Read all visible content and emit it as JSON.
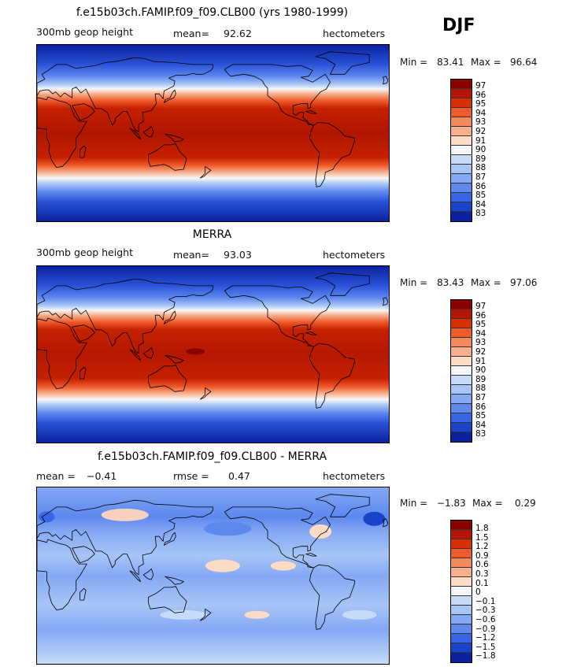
{
  "season": "DJF",
  "panels": [
    {
      "title": "f.e15b03ch.FAMIP.f09_f09.CLB00 (yrs 1980-1999)",
      "left_label": "300mb geop height",
      "mean_label": "mean=",
      "mean_value": "92.62",
      "units": "hectometers",
      "min_label": "Min =",
      "min_value": "83.41",
      "max_label": "Max =",
      "max_value": "96.64",
      "legend_levels": [
        "97",
        "96",
        "95",
        "94",
        "93",
        "92",
        "91",
        "90",
        "89",
        "88",
        "87",
        "86",
        "85",
        "84",
        "83"
      ],
      "legend_colors": [
        "#8b0000",
        "#b31500",
        "#d83000",
        "#ee5a2a",
        "#f4895e",
        "#f8b18f",
        "#fcdcc4",
        "#f6f6f6",
        "#c6dbf7",
        "#a7c5f6",
        "#84a8f5",
        "#5d88ee",
        "#3966e6",
        "#1a43cc",
        "#0a21a0"
      ],
      "color_stops": [
        {
          "lat": 90,
          "color": "#0a21a0"
        },
        {
          "lat": 70,
          "color": "#2a52d8"
        },
        {
          "lat": 58,
          "color": "#5d88ee"
        },
        {
          "lat": 50,
          "color": "#a7c5f6"
        },
        {
          "lat": 45,
          "color": "#f6f6f6"
        },
        {
          "lat": 40,
          "color": "#f8b18f"
        },
        {
          "lat": 33,
          "color": "#ee5a2a"
        },
        {
          "lat": 25,
          "color": "#c52100"
        },
        {
          "lat": 0,
          "color": "#b01500"
        },
        {
          "lat": -25,
          "color": "#c52100"
        },
        {
          "lat": -33,
          "color": "#ee5a2a"
        },
        {
          "lat": -40,
          "color": "#f8b18f"
        },
        {
          "lat": -46,
          "color": "#f6f6f6"
        },
        {
          "lat": -52,
          "color": "#a7c5f6"
        },
        {
          "lat": -60,
          "color": "#5d88ee"
        },
        {
          "lat": -70,
          "color": "#2a52d8"
        },
        {
          "lat": -90,
          "color": "#0a21a0"
        }
      ]
    },
    {
      "title": "MERRA",
      "left_label": "300mb geop height",
      "mean_label": "mean=",
      "mean_value": "93.03",
      "units": "hectometers",
      "min_label": "Min =",
      "min_value": "83.43",
      "max_label": "Max =",
      "max_value": "97.06",
      "legend_levels": [
        "97",
        "96",
        "95",
        "94",
        "93",
        "92",
        "91",
        "90",
        "89",
        "88",
        "87",
        "86",
        "85",
        "84",
        "83"
      ],
      "legend_colors": [
        "#8b0000",
        "#b31500",
        "#d83000",
        "#ee5a2a",
        "#f4895e",
        "#f8b18f",
        "#fcdcc4",
        "#f6f6f6",
        "#c6dbf7",
        "#a7c5f6",
        "#84a8f5",
        "#5d88ee",
        "#3966e6",
        "#1a43cc",
        "#0a21a0"
      ],
      "color_stops": [
        {
          "lat": 90,
          "color": "#0a21a0"
        },
        {
          "lat": 70,
          "color": "#2a52d8"
        },
        {
          "lat": 58,
          "color": "#5d88ee"
        },
        {
          "lat": 50,
          "color": "#a7c5f6"
        },
        {
          "lat": 45,
          "color": "#f6f6f6"
        },
        {
          "lat": 40,
          "color": "#f8b18f"
        },
        {
          "lat": 33,
          "color": "#ee5a2a"
        },
        {
          "lat": 25,
          "color": "#c52100"
        },
        {
          "lat": 0,
          "color": "#b51800"
        },
        {
          "lat": -25,
          "color": "#c52100"
        },
        {
          "lat": -33,
          "color": "#ee5a2a"
        },
        {
          "lat": -40,
          "color": "#f8b18f"
        },
        {
          "lat": -46,
          "color": "#f6f6f6"
        },
        {
          "lat": -52,
          "color": "#a7c5f6"
        },
        {
          "lat": -60,
          "color": "#5d88ee"
        },
        {
          "lat": -70,
          "color": "#2a52d8"
        },
        {
          "lat": -90,
          "color": "#0a21a0"
        }
      ]
    },
    {
      "title": "f.e15b03ch.FAMIP.f09_f09.CLB00 - MERRA",
      "left_label": "mean =",
      "left_value": "−0.41",
      "mean_label": "rmse =",
      "mean_value": "0.47",
      "units": "hectometers",
      "min_label": "Min =",
      "min_value": "−1.83",
      "max_label": "Max =",
      "max_value": "0.29",
      "legend_levels": [
        "1.8",
        "1.5",
        "1.2",
        "0.9",
        "0.6",
        "0.3",
        "0.1",
        "0",
        "−0.1",
        "−0.3",
        "−0.6",
        "−0.9",
        "−1.2",
        "−1.5",
        "−1.8"
      ],
      "legend_colors": [
        "#8b0000",
        "#b31500",
        "#d83000",
        "#ee5a2a",
        "#f4895e",
        "#f8b18f",
        "#fcdcc4",
        "#f6f6f6",
        "#c6dbf7",
        "#a7c5f6",
        "#84a8f5",
        "#5d88ee",
        "#3966e6",
        "#1a43cc",
        "#0a21a0"
      ],
      "color_stops": [
        {
          "lat": 90,
          "color": "#84a8f5"
        },
        {
          "lat": 60,
          "color": "#5d88ee"
        },
        {
          "lat": 45,
          "color": "#84a8f5"
        },
        {
          "lat": 20,
          "color": "#a7c5f6"
        },
        {
          "lat": 0,
          "color": "#84a8f5"
        },
        {
          "lat": -30,
          "color": "#a7c5f6"
        },
        {
          "lat": -55,
          "color": "#84a8f5"
        },
        {
          "lat": -75,
          "color": "#a7c5f6"
        },
        {
          "lat": -90,
          "color": "#c6dbf7"
        }
      ]
    }
  ]
}
